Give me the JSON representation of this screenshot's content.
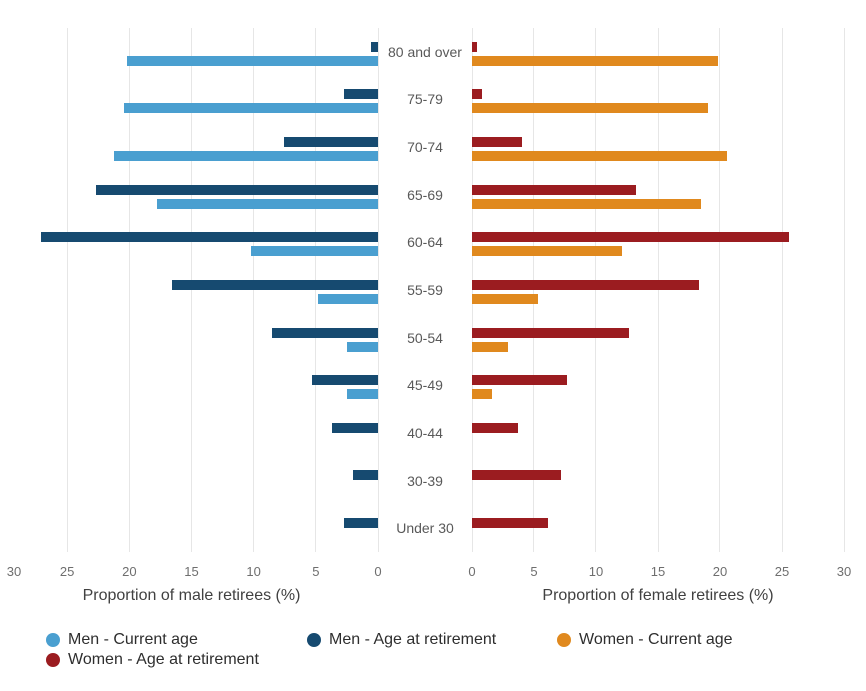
{
  "chart_data": {
    "type": "bar",
    "variant": "population-pyramid-horizontal",
    "title": "",
    "age_groups": [
      "80 and over",
      "75-79",
      "70-74",
      "65-69",
      "60-64",
      "55-59",
      "50-54",
      "45-49",
      "40-44",
      "30-39",
      "Under 30"
    ],
    "left_panel": {
      "axis_title": "Proportion of male retirees (%)",
      "tick_labels": [
        30,
        25,
        20,
        15,
        10,
        5,
        0
      ],
      "gridline_values": [
        25,
        20,
        15,
        10,
        5,
        0
      ],
      "axis_max": 30,
      "direction": "right-to-left",
      "series": [
        {
          "name": "Men - Age at retirement",
          "color": "#164a70",
          "values": [
            0.6,
            2.7,
            7.6,
            22.7,
            27.1,
            16.6,
            8.5,
            5.3,
            3.7,
            2.0,
            2.7
          ]
        },
        {
          "name": "Men - Current age",
          "color": "#4a9fd0",
          "values": [
            20.2,
            20.4,
            21.2,
            17.8,
            10.2,
            4.8,
            2.5,
            2.5,
            0,
            0,
            0
          ]
        }
      ]
    },
    "right_panel": {
      "axis_title": "Proportion of female retirees (%)",
      "tick_labels": [
        0,
        5,
        10,
        15,
        20,
        25,
        30
      ],
      "gridline_values": [
        0,
        5,
        10,
        15,
        20,
        25,
        30
      ],
      "axis_max": 30,
      "direction": "left-to-right",
      "series": [
        {
          "name": "Women - Age at retirement",
          "color": "#9b1c20",
          "values": [
            0.4,
            0.8,
            4.0,
            13.2,
            25.6,
            18.3,
            12.7,
            7.7,
            3.7,
            7.2,
            6.1
          ]
        },
        {
          "name": "Women - Current age",
          "color": "#e0891e",
          "values": [
            19.8,
            19.0,
            20.6,
            18.5,
            12.1,
            5.3,
            2.9,
            1.6,
            0,
            0,
            0
          ]
        }
      ]
    },
    "legend": [
      {
        "label": "Men - Current age",
        "color": "#4a9fd0"
      },
      {
        "label": "Men - Age at retirement",
        "color": "#164a70"
      },
      {
        "label": "Women - Current age",
        "color": "#e0891e"
      },
      {
        "label": "Women - Age at retirement",
        "color": "#9b1c20"
      }
    ],
    "grid": true,
    "legend_position": "bottom-left"
  }
}
